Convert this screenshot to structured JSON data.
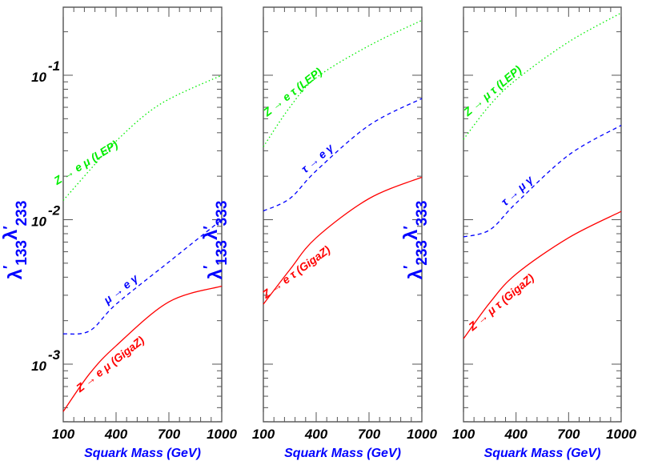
{
  "chart_data": [
    {
      "type": "line",
      "ylabel": {
        "main": "λ",
        "sub1": "133",
        "sub2": "233"
      },
      "xlabel": "Squark Mass (GeV)",
      "xlim": [
        100,
        1000
      ],
      "ylim": [
        0.0004,
        0.3
      ],
      "yscale": "log",
      "xticks": [
        "100",
        "400",
        "700",
        "1000"
      ],
      "yticks": [
        {
          "base": "10",
          "exp": "-1",
          "value": 0.1
        },
        {
          "base": "10",
          "exp": "-2",
          "value": 0.01
        },
        {
          "base": "10",
          "exp": "-3",
          "value": 0.001
        }
      ],
      "grid": false,
      "series": [
        {
          "name": "Z → e μ (LEP)",
          "color": "#00ee00",
          "style": "dotted",
          "x": [
            100,
            250,
            400,
            650,
            1000
          ],
          "y": [
            0.0136,
            0.022,
            0.035,
            0.063,
            0.1
          ]
        },
        {
          "name": "μ → e γ",
          "color": "#0000ff",
          "style": "dashed",
          "x": [
            100,
            250,
            400,
            700,
            1000
          ],
          "y": [
            0.00162,
            0.0017,
            0.0026,
            0.0051,
            0.01
          ]
        },
        {
          "name": "Z → e μ (GigaZ)",
          "color": "#ff0000",
          "style": "solid",
          "x": [
            100,
            250,
            400,
            700,
            1000
          ],
          "y": [
            0.00047,
            0.00086,
            0.00134,
            0.0027,
            0.00347
          ]
        }
      ]
    },
    {
      "type": "line",
      "ylabel": {
        "main": "λ",
        "sub1": "133",
        "sub2": "333"
      },
      "xlabel": "Squark Mass (GeV)",
      "xlim": [
        100,
        1000
      ],
      "ylim": [
        0.0004,
        0.3
      ],
      "yscale": "log",
      "xticks": [
        "100",
        "400",
        "700",
        "1000"
      ],
      "grid": false,
      "series": [
        {
          "name": "Z → e τ (LEP)",
          "color": "#00ee00",
          "style": "dotted",
          "x": [
            100,
            250,
            400,
            700,
            1000
          ],
          "y": [
            0.032,
            0.06,
            0.096,
            0.16,
            0.24
          ]
        },
        {
          "name": "τ → e γ",
          "color": "#0000ff",
          "style": "dashed",
          "x": [
            100,
            250,
            400,
            700,
            1000
          ],
          "y": [
            0.0115,
            0.014,
            0.0218,
            0.045,
            0.069
          ]
        },
        {
          "name": "Z → e τ (GigaZ)",
          "color": "#ff0000",
          "style": "solid",
          "x": [
            100,
            250,
            400,
            700,
            1000
          ],
          "y": [
            0.0026,
            0.0045,
            0.0075,
            0.014,
            0.0197
          ]
        }
      ]
    },
    {
      "type": "line",
      "ylabel": {
        "main": "λ",
        "sub1": "233",
        "sub2": "333"
      },
      "xlabel": "Squark Mass (GeV)",
      "xlim": [
        100,
        1000
      ],
      "ylim": [
        0.0004,
        0.3
      ],
      "yscale": "log",
      "xticks": [
        "100",
        "400",
        "700",
        "1000"
      ],
      "grid": false,
      "series": [
        {
          "name": "Z → μ τ (LEP)",
          "color": "#00ee00",
          "style": "dotted",
          "x": [
            100,
            250,
            400,
            700,
            1000
          ],
          "y": [
            0.036,
            0.062,
            0.093,
            0.17,
            0.27
          ]
        },
        {
          "name": "τ → μ γ",
          "color": "#0000ff",
          "style": "dashed",
          "x": [
            100,
            250,
            400,
            700,
            1000
          ],
          "y": [
            0.0076,
            0.0085,
            0.013,
            0.028,
            0.045
          ]
        },
        {
          "name": "Z → μ τ (GigaZ)",
          "color": "#ff0000",
          "style": "solid",
          "x": [
            100,
            250,
            400,
            700,
            1000
          ],
          "y": [
            0.0015,
            0.00266,
            0.0042,
            0.0075,
            0.0114
          ]
        }
      ]
    }
  ]
}
